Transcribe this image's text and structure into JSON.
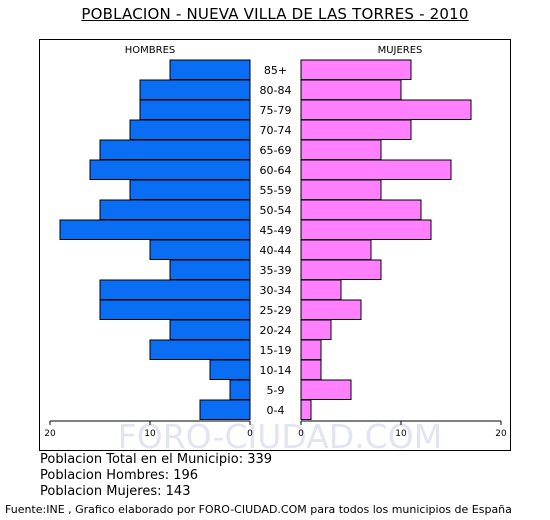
{
  "title": "POBLACION - NUEVA VILLA DE LAS TORRES - 2010",
  "watermark": "FORO-CIUDAD.COM",
  "chart_data": {
    "type": "bar",
    "orientation": "horizontal",
    "subtype": "population-pyramid",
    "categories": [
      "85+",
      "80-84",
      "75-79",
      "70-74",
      "65-69",
      "60-64",
      "55-59",
      "50-54",
      "45-49",
      "40-44",
      "35-39",
      "30-34",
      "25-29",
      "20-24",
      "15-19",
      "10-14",
      "5-9",
      "0-4"
    ],
    "series": [
      {
        "name": "HOMBRES",
        "color": "#0a6ef5",
        "values": [
          8,
          11,
          11,
          12,
          15,
          16,
          12,
          15,
          19,
          10,
          8,
          15,
          15,
          8,
          10,
          4,
          2,
          5
        ]
      },
      {
        "name": "MUJERES",
        "color": "#ff80ff",
        "values": [
          11,
          10,
          17,
          11,
          8,
          15,
          8,
          12,
          13,
          7,
          8,
          4,
          6,
          3,
          2,
          2,
          5,
          1
        ]
      }
    ],
    "x_ticks_left": [
      "20",
      "10",
      "0"
    ],
    "x_ticks_right": [
      "0",
      "10",
      "20"
    ],
    "xlim": [
      0,
      20
    ],
    "grid": false
  },
  "info": {
    "total": "Poblacion Total en el Municipio: 339",
    "hombres": "Poblacion Hombres: 196",
    "mujeres": "Poblacion Mujeres: 143"
  },
  "source": "Fuente:INE , Grafico elaborado por FORO-CIUDAD.COM para todos los municipios de España"
}
